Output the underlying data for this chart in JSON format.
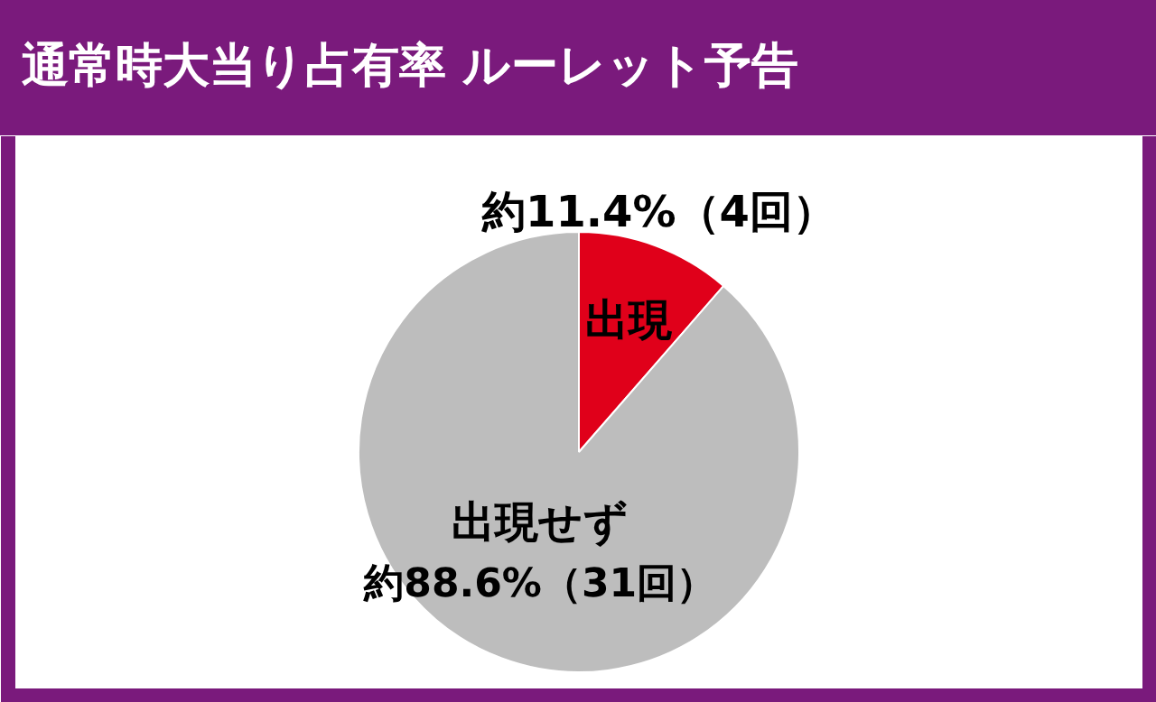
{
  "chart_data": {
    "type": "pie",
    "title": "通常時大当り占有率 ルーレット予告",
    "categories": [
      "出現",
      "出現せず"
    ],
    "values": [
      11.4,
      88.6
    ],
    "colors": [
      "#e0001a",
      "#bdbdbd"
    ],
    "value_labels": [
      "約11.4%（4回）",
      "約88.6%（31回）"
    ]
  }
}
